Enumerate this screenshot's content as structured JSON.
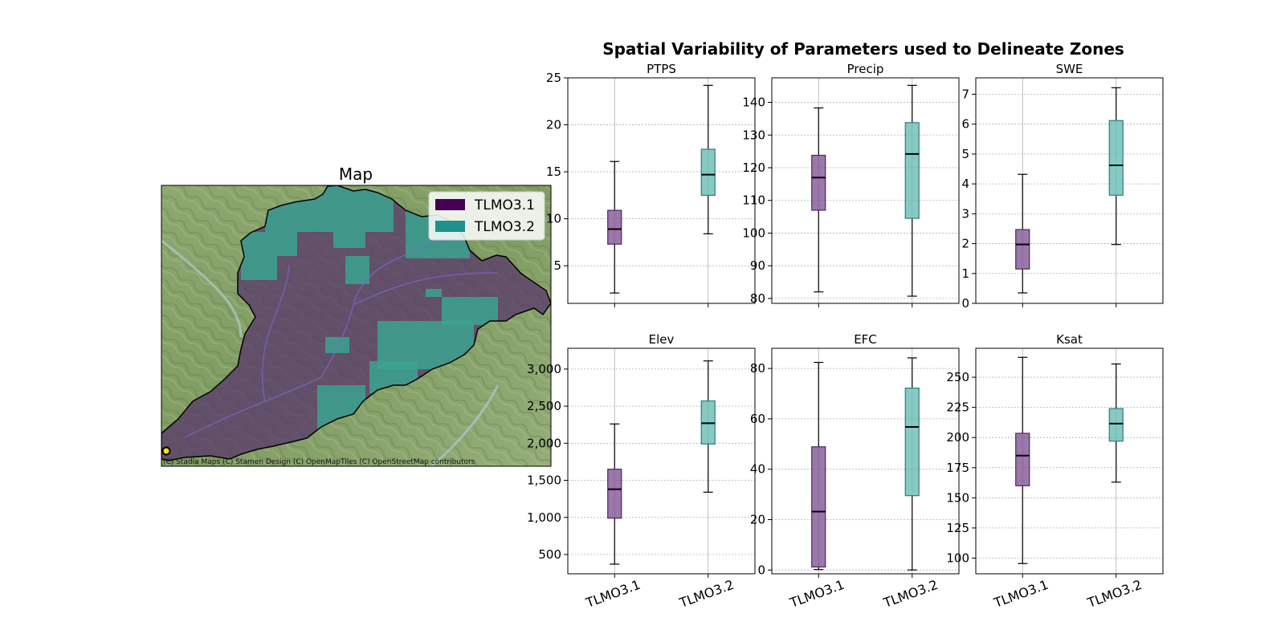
{
  "suptitle": "Spatial Variability of Parameters used to Delineate Zones",
  "map": {
    "title": "Map",
    "attribution": "(C) Stadia Maps (C) Stamen Design (C) OpenMapTiles (C) OpenStreetMap contributors",
    "legend": [
      {
        "label": "TLMO3.1",
        "color": "#440154"
      },
      {
        "label": "TLMO3.2",
        "color": "#21918c"
      }
    ]
  },
  "colors": {
    "zone1": "#7b4a8e",
    "zone2": "#5fb8b0"
  },
  "chart_data": [
    {
      "type": "box",
      "title": "PTPS",
      "categories": [
        "TLMO3.1",
        "TLMO3.2"
      ],
      "ylim": [
        1,
        25
      ],
      "yticks": [
        5,
        10,
        15,
        20,
        25
      ],
      "tick_labels": [
        "5",
        "10",
        "15",
        "20",
        "25"
      ],
      "boxes": [
        {
          "whislo": 2.1,
          "q1": 7.3,
          "med": 8.9,
          "q3": 10.9,
          "whishi": 16.1
        },
        {
          "whislo": 8.4,
          "q1": 12.5,
          "med": 14.7,
          "q3": 17.4,
          "whishi": 24.2
        }
      ]
    },
    {
      "type": "box",
      "title": "Precip",
      "categories": [
        "TLMO3.1",
        "TLMO3.2"
      ],
      "ylim": [
        78.5,
        147.5
      ],
      "yticks": [
        80,
        90,
        100,
        110,
        120,
        130,
        140
      ],
      "tick_labels": [
        "80",
        "90",
        "100",
        "110",
        "120",
        "130",
        "140"
      ],
      "boxes": [
        {
          "whislo": 82,
          "q1": 107,
          "med": 117,
          "q3": 123.8,
          "whishi": 138.3
        },
        {
          "whislo": 80.7,
          "q1": 104.5,
          "med": 124.2,
          "q3": 133.8,
          "whishi": 145.2
        }
      ]
    },
    {
      "type": "box",
      "title": "SWE",
      "categories": [
        "TLMO3.1",
        "TLMO3.2"
      ],
      "ylim": [
        0,
        7.55
      ],
      "yticks": [
        0,
        1,
        2,
        3,
        4,
        5,
        6,
        7
      ],
      "tick_labels": [
        "0",
        "1",
        "2",
        "3",
        "4",
        "5",
        "6",
        "7"
      ],
      "boxes": [
        {
          "whislo": 0.35,
          "q1": 1.15,
          "med": 1.97,
          "q3": 2.47,
          "whishi": 4.32
        },
        {
          "whislo": 1.97,
          "q1": 3.62,
          "med": 4.62,
          "q3": 6.12,
          "whishi": 7.22
        }
      ]
    },
    {
      "type": "box",
      "title": "Elev",
      "categories": [
        "TLMO3.1",
        "TLMO3.2"
      ],
      "ylim": [
        240,
        3280
      ],
      "yticks": [
        500,
        1000,
        1500,
        2000,
        2500,
        3000
      ],
      "tick_labels": [
        "500",
        "1,000",
        "1,500",
        "2,000",
        "2,500",
        "3,000"
      ],
      "boxes": [
        {
          "whislo": 370,
          "q1": 990,
          "med": 1380,
          "q3": 1650,
          "whishi": 2260
        },
        {
          "whislo": 1340,
          "q1": 1990,
          "med": 2270,
          "q3": 2570,
          "whishi": 3110
        }
      ]
    },
    {
      "type": "box",
      "title": "EFC",
      "categories": [
        "TLMO3.1",
        "TLMO3.2"
      ],
      "ylim": [
        -1.5,
        88
      ],
      "yticks": [
        0,
        20,
        40,
        60,
        80
      ],
      "tick_labels": [
        "0",
        "20",
        "40",
        "60",
        "80"
      ],
      "boxes": [
        {
          "whislo": 0.2,
          "q1": 1.2,
          "med": 23.2,
          "q3": 48.9,
          "whishi": 82.4
        },
        {
          "whislo": 0,
          "q1": 29.5,
          "med": 56.8,
          "q3": 72.2,
          "whishi": 84.2
        }
      ]
    },
    {
      "type": "box",
      "title": "Ksat",
      "categories": [
        "TLMO3.1",
        "TLMO3.2"
      ],
      "ylim": [
        87,
        274
      ],
      "yticks": [
        100,
        125,
        150,
        175,
        200,
        225,
        250
      ],
      "tick_labels": [
        "100",
        "125",
        "150",
        "175",
        "200",
        "225",
        "250"
      ],
      "boxes": [
        {
          "whislo": 95.5,
          "q1": 160,
          "med": 185,
          "q3": 203.5,
          "whishi": 266.5
        },
        {
          "whislo": 163,
          "q1": 197,
          "med": 211.5,
          "q3": 224,
          "whishi": 261
        }
      ]
    }
  ]
}
